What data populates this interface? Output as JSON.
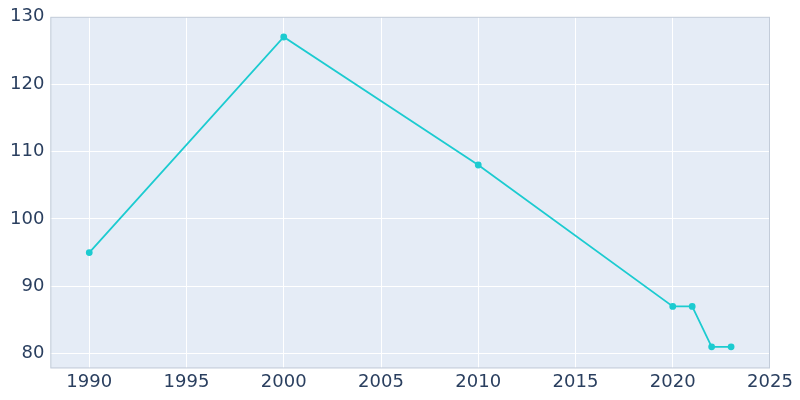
{
  "chart_data": {
    "type": "line",
    "x": [
      1990,
      2000,
      2010,
      2020,
      2021,
      2022,
      2023
    ],
    "values": [
      95,
      127,
      108,
      87,
      87,
      81,
      81
    ],
    "color": "#1ccbd0",
    "marker": "circle",
    "xlim": [
      1988,
      2025
    ],
    "xticks": [
      1990,
      1995,
      2000,
      2005,
      2010,
      2015,
      2020,
      2025
    ],
    "ylim": [
      77.8,
      130
    ],
    "yticks": [
      80,
      90,
      100,
      110,
      120,
      130
    ],
    "grid": true
  }
}
